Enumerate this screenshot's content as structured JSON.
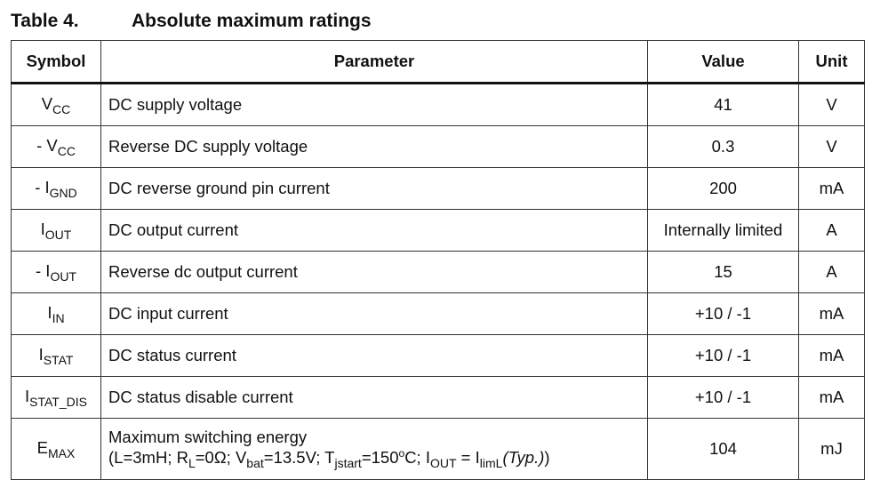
{
  "caption": {
    "number": "Table 4.",
    "title": "Absolute maximum ratings"
  },
  "table": {
    "header": [
      "Symbol",
      "Parameter",
      "Value",
      "Unit"
    ],
    "rows": [
      {
        "symbol": {
          "main": "V",
          "sub": "CC"
        },
        "parameter": "DC supply voltage",
        "value": "41",
        "unit": "V"
      },
      {
        "symbol": {
          "main": "- V",
          "sub": "CC"
        },
        "parameter": "Reverse DC supply voltage",
        "value": "0.3",
        "unit": "V"
      },
      {
        "symbol": {
          "main": "- I",
          "sub": "GND"
        },
        "parameter": "DC reverse ground pin current",
        "value": "200",
        "unit": "mA"
      },
      {
        "symbol": {
          "main": "I",
          "sub": "OUT"
        },
        "parameter": "DC output current",
        "value": "Internally limited",
        "unit": "A"
      },
      {
        "symbol": {
          "main": "- I",
          "sub": "OUT"
        },
        "parameter": "Reverse dc output current",
        "value": "15",
        "unit": "A"
      },
      {
        "symbol": {
          "main": "I",
          "sub": "IN"
        },
        "parameter": "DC input current",
        "value": "+10 / -1",
        "unit": "mA"
      },
      {
        "symbol": {
          "main": "I",
          "sub": "STAT"
        },
        "parameter": "DC status current",
        "value": "+10 / -1",
        "unit": "mA"
      },
      {
        "symbol": {
          "main": "I",
          "sub": "STAT_DIS"
        },
        "parameter": "DC status disable current",
        "value": "+10 / -1",
        "unit": "mA"
      },
      {
        "symbol": {
          "main": "E",
          "sub": "MAX"
        },
        "parameter": "Maximum switching energy",
        "condition": [
          {
            "text": "(L=3mH; R"
          },
          {
            "sub": "L"
          },
          {
            "text": "=0Ω; V"
          },
          {
            "sub": "bat"
          },
          {
            "text": "=13.5V; T"
          },
          {
            "sub": "jstart"
          },
          {
            "text": "=150"
          },
          {
            "sup": "o"
          },
          {
            "text": "C; I"
          },
          {
            "sub": "OUT"
          },
          {
            "text": " = I"
          },
          {
            "sub": "limL"
          },
          {
            "italic": "(Typ.)"
          },
          {
            "text": ")"
          }
        ],
        "value": "104",
        "unit": "mJ"
      }
    ]
  }
}
